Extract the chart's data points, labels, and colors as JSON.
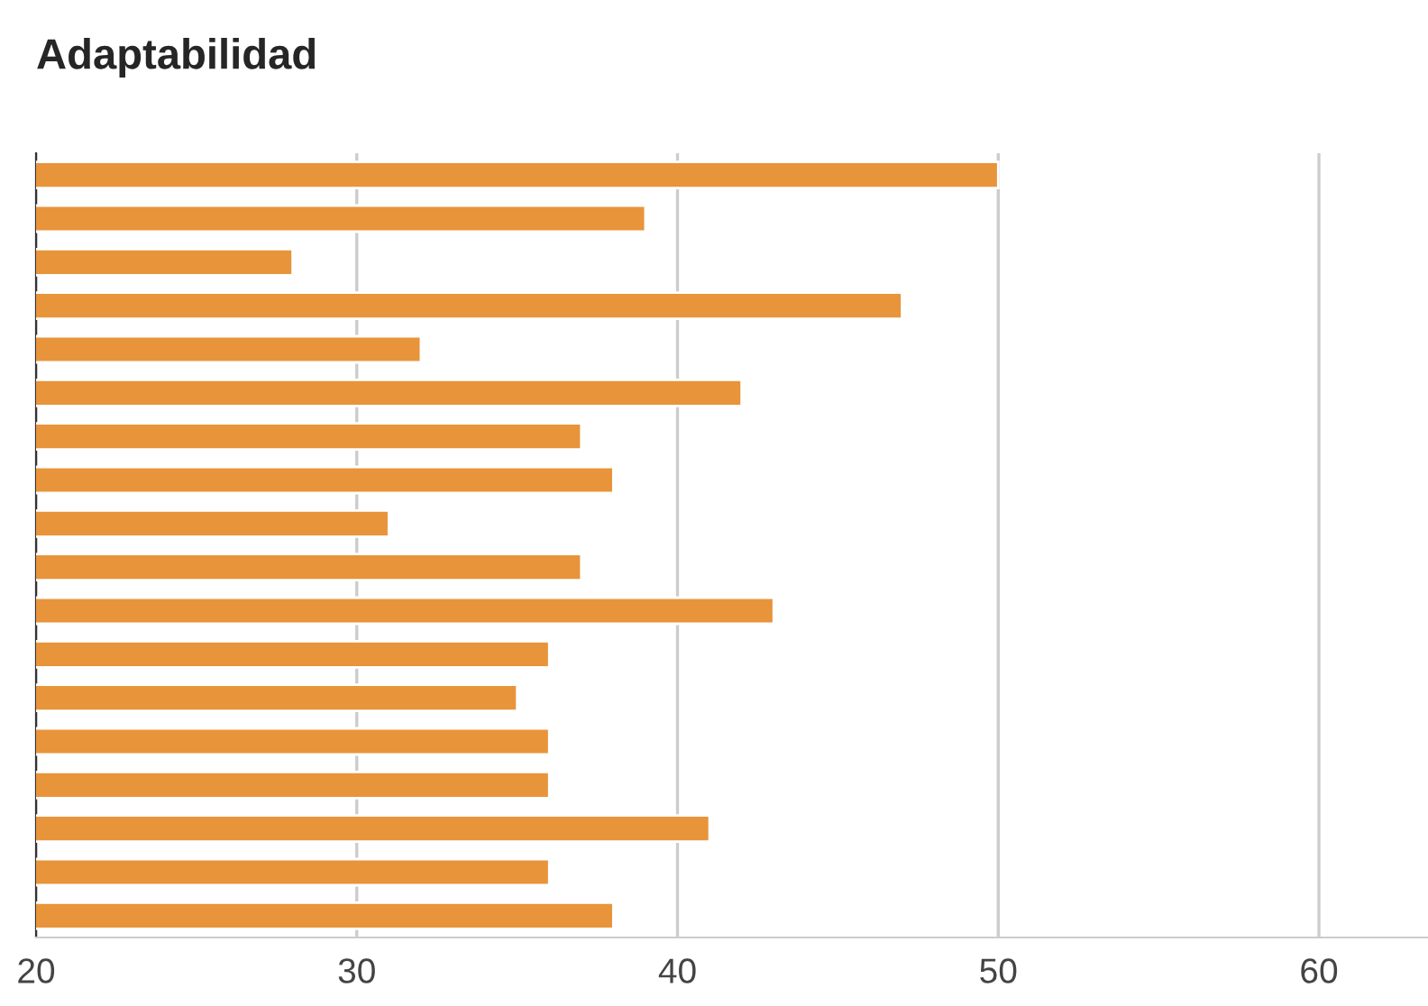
{
  "chart_data": {
    "type": "bar",
    "orientation": "horizontal",
    "title": "Adaptabilidad",
    "categories": [
      null,
      null,
      null,
      null,
      null,
      null,
      null,
      null,
      null,
      null,
      null,
      null,
      null,
      null,
      null,
      null,
      null,
      null
    ],
    "values": [
      50,
      39,
      28,
      47,
      32,
      42,
      37,
      38,
      31,
      37,
      43,
      36,
      35,
      36,
      36,
      41,
      36,
      38
    ],
    "color": "#e8943a",
    "xlim": [
      20,
      63.4
    ],
    "xticks": [
      20,
      30,
      40,
      50,
      60
    ],
    "grid": "x",
    "legend": false
  }
}
